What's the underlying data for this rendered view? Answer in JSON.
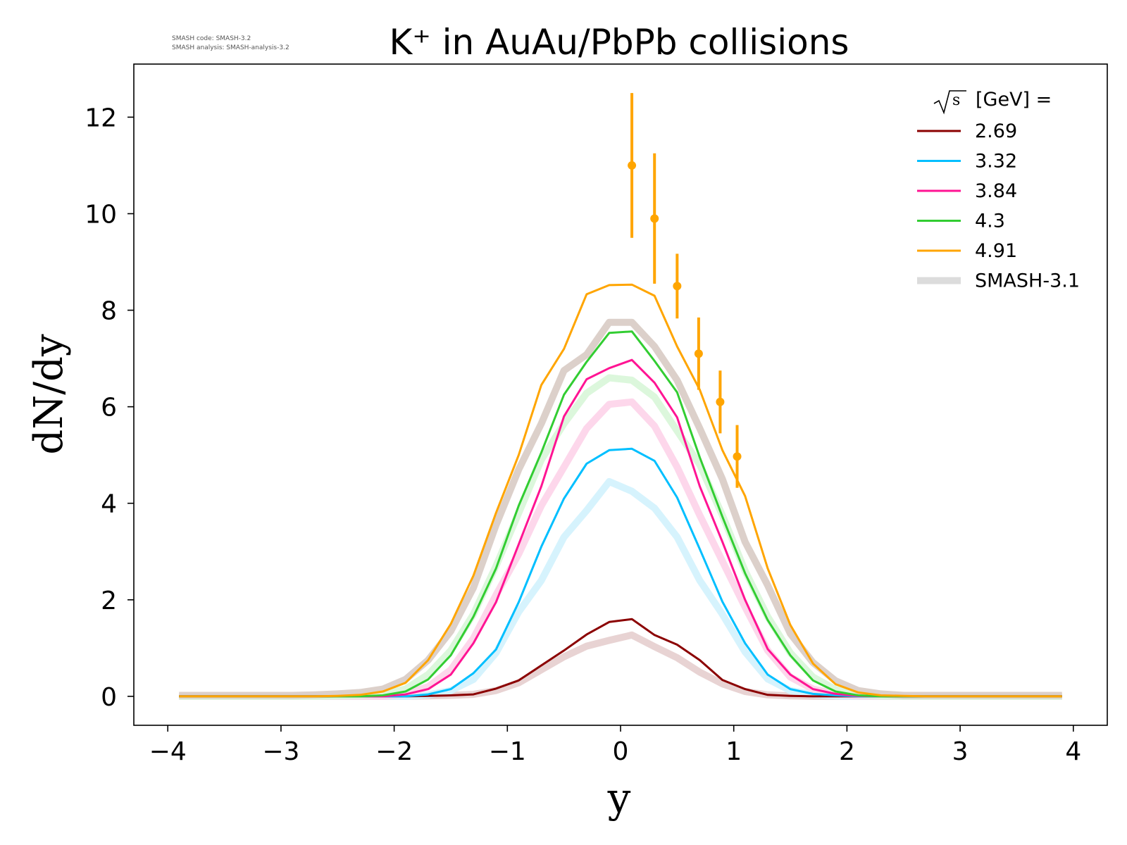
{
  "meta": {
    "code_line": "SMASH code:      SMASH-3.2",
    "analysis_line": "SMASH analysis: SMASH-analysis-3.2"
  },
  "chart_data": {
    "type": "line",
    "title": "K⁺ in AuAu/PbPb collisions",
    "xlabel": "y",
    "ylabel": "dN/dy",
    "xlim": [
      -4.3,
      4.3
    ],
    "ylim": [
      -0.6,
      13.1
    ],
    "xticks": [
      -4,
      -3,
      -2,
      -1,
      0,
      1,
      2,
      3,
      4
    ],
    "xtick_labels": [
      "−4",
      "−3",
      "−2",
      "−1",
      "0",
      "1",
      "2",
      "3",
      "4"
    ],
    "yticks": [
      0,
      2,
      4,
      6,
      8,
      10,
      12
    ],
    "ytick_labels": [
      "0",
      "2",
      "4",
      "6",
      "8",
      "10",
      "12"
    ],
    "grid": false,
    "legend": {
      "placement": "top-right",
      "title_root": "√s",
      "title_rest": " [GeV] ="
    },
    "x": [
      -3.9,
      -3.7,
      -3.5,
      -3.3,
      -3.1,
      -2.9,
      -2.7,
      -2.5,
      -2.3,
      -2.1,
      -1.9,
      -1.7,
      -1.5,
      -1.3,
      -1.1,
      -0.9,
      -0.7,
      -0.5,
      -0.3,
      -0.1,
      0.1,
      0.3,
      0.5,
      0.7,
      0.9,
      1.1,
      1.3,
      1.5,
      1.7,
      1.9,
      2.1,
      2.3,
      2.5,
      2.7,
      2.9,
      3.1,
      3.3,
      3.5,
      3.7,
      3.9
    ],
    "series": [
      {
        "name": "2.69",
        "color": "#8b0000",
        "ref_color": "#e8d3d3",
        "values": [
          0,
          0,
          0,
          0,
          0,
          0,
          0,
          0,
          0,
          0,
          0,
          0.01,
          0.02,
          0.04,
          0.16,
          0.33,
          0.64,
          0.95,
          1.28,
          1.54,
          1.6,
          1.27,
          1.07,
          0.75,
          0.34,
          0.15,
          0.03,
          0.01,
          0,
          0,
          0,
          0,
          0,
          0,
          0,
          0,
          0,
          0,
          0,
          0
        ],
        "ref_values": [
          0,
          0,
          0,
          0,
          0,
          0,
          0,
          0,
          0,
          0,
          0,
          0.01,
          0.02,
          0.04,
          0.12,
          0.28,
          0.55,
          0.82,
          1.04,
          1.16,
          1.27,
          1.03,
          0.8,
          0.5,
          0.26,
          0.1,
          0.03,
          0.01,
          0,
          0,
          0,
          0,
          0,
          0,
          0,
          0,
          0,
          0,
          0,
          0
        ]
      },
      {
        "name": "3.32",
        "color": "#00bfff",
        "ref_color": "#d6f3fd",
        "values": [
          0,
          0,
          0,
          0,
          0,
          0,
          0,
          0,
          0,
          0,
          0,
          0.04,
          0.15,
          0.48,
          0.97,
          1.95,
          3.1,
          4.1,
          4.82,
          5.1,
          5.13,
          4.88,
          4.12,
          3.05,
          1.96,
          1.1,
          0.45,
          0.15,
          0.05,
          0.02,
          0,
          0,
          0,
          0,
          0,
          0,
          0,
          0,
          0,
          0
        ],
        "ref_values": [
          0,
          0,
          0,
          0,
          0,
          0,
          0,
          0,
          0,
          0,
          0,
          0.03,
          0.12,
          0.35,
          0.9,
          1.75,
          2.4,
          3.3,
          3.85,
          4.45,
          4.25,
          3.9,
          3.3,
          2.4,
          1.7,
          0.92,
          0.36,
          0.12,
          0.04,
          0.01,
          0,
          0,
          0,
          0,
          0,
          0,
          0,
          0,
          0,
          0
        ]
      },
      {
        "name": "3.84",
        "color": "#ff1493",
        "ref_color": "#fdd7eb",
        "values": [
          0,
          0,
          0,
          0,
          0,
          0,
          0,
          0,
          0,
          0,
          0.04,
          0.15,
          0.45,
          1.1,
          1.95,
          3.15,
          4.35,
          5.8,
          6.57,
          6.8,
          6.97,
          6.5,
          5.78,
          4.35,
          3.2,
          2.0,
          0.98,
          0.45,
          0.15,
          0.05,
          0.01,
          0,
          0,
          0,
          0,
          0,
          0,
          0,
          0,
          0
        ],
        "ref_values": [
          0,
          0,
          0,
          0,
          0,
          0,
          0,
          0,
          0,
          0,
          0.05,
          0.2,
          0.55,
          1.2,
          2.1,
          2.95,
          3.95,
          4.75,
          5.55,
          6.05,
          6.1,
          5.6,
          4.75,
          3.75,
          2.8,
          1.85,
          0.95,
          0.4,
          0.15,
          0.05,
          0.01,
          0,
          0,
          0,
          0,
          0,
          0,
          0,
          0,
          0
        ]
      },
      {
        "name": "4.3",
        "color": "#32cd32",
        "ref_color": "#dcf7dc",
        "values": [
          0,
          0,
          0,
          0,
          0,
          0,
          0,
          0,
          0,
          0.02,
          0.1,
          0.35,
          0.85,
          1.65,
          2.65,
          3.95,
          5.05,
          6.25,
          6.93,
          7.53,
          7.56,
          6.95,
          6.3,
          4.95,
          3.72,
          2.55,
          1.58,
          0.85,
          0.33,
          0.1,
          0.02,
          0,
          0,
          0,
          0,
          0,
          0,
          0,
          0,
          0
        ],
        "ref_values": [
          0,
          0,
          0,
          0,
          0,
          0,
          0,
          0.01,
          0.02,
          0.05,
          0.15,
          0.45,
          0.95,
          1.7,
          2.7,
          3.8,
          4.9,
          5.65,
          6.28,
          6.6,
          6.55,
          6.2,
          5.5,
          4.8,
          3.75,
          2.6,
          1.65,
          0.9,
          0.4,
          0.14,
          0.04,
          0.01,
          0,
          0,
          0,
          0,
          0,
          0,
          0,
          0
        ]
      },
      {
        "name": "4.91",
        "color": "#ffa500",
        "ref_color": "#dcd0ca",
        "values": [
          0,
          0,
          0,
          0,
          0,
          0,
          0,
          0.01,
          0.03,
          0.1,
          0.28,
          0.75,
          1.5,
          2.5,
          3.8,
          5.0,
          6.45,
          7.2,
          8.33,
          8.52,
          8.53,
          8.3,
          7.25,
          6.35,
          5.1,
          4.15,
          2.65,
          1.48,
          0.68,
          0.25,
          0.08,
          0.02,
          0.01,
          0,
          0,
          0,
          0,
          0,
          0,
          0
        ],
        "ref_values": [
          0.02,
          0.02,
          0.02,
          0.02,
          0.02,
          0.02,
          0.03,
          0.05,
          0.08,
          0.15,
          0.35,
          0.75,
          1.35,
          2.25,
          3.55,
          4.7,
          5.65,
          6.75,
          7.08,
          7.75,
          7.75,
          7.25,
          6.55,
          5.55,
          4.5,
          3.2,
          2.3,
          1.3,
          0.7,
          0.32,
          0.12,
          0.05,
          0.02,
          0.02,
          0.02,
          0.02,
          0.02,
          0.02,
          0.02,
          0.02
        ]
      }
    ],
    "reference_legend": {
      "name": "SMASH-3.1",
      "color": "#dcdcdc"
    },
    "data_points": {
      "series": "4.91",
      "color": "#ffa500",
      "points": [
        {
          "x": 0.1,
          "y": 11.0,
          "yerr": 1.5
        },
        {
          "x": 0.3,
          "y": 9.9,
          "yerr": 1.35
        },
        {
          "x": 0.5,
          "y": 8.5,
          "yerr": 0.67
        },
        {
          "x": 0.69,
          "y": 7.1,
          "yerr": 0.75
        },
        {
          "x": 0.88,
          "y": 6.1,
          "yerr": 0.65
        },
        {
          "x": 1.03,
          "y": 4.97,
          "yerr": 0.65
        }
      ]
    }
  }
}
